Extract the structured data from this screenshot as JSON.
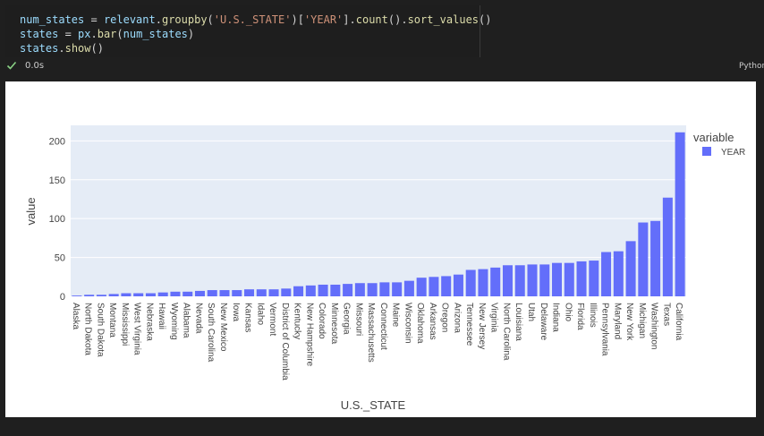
{
  "code": {
    "lines": [
      [
        {
          "t": "num_states",
          "c": "var"
        },
        {
          "t": " = ",
          "c": "op"
        },
        {
          "t": "relevant",
          "c": "var"
        },
        {
          "t": ".",
          "c": "op"
        },
        {
          "t": "groupby",
          "c": "fn"
        },
        {
          "t": "(",
          "c": "op"
        },
        {
          "t": "'U.S._STATE'",
          "c": "str"
        },
        {
          "t": ")[",
          "c": "op"
        },
        {
          "t": "'YEAR'",
          "c": "str"
        },
        {
          "t": "].",
          "c": "op"
        },
        {
          "t": "count",
          "c": "fn"
        },
        {
          "t": "().",
          "c": "op"
        },
        {
          "t": "sort_values",
          "c": "fn"
        },
        {
          "t": "()",
          "c": "op"
        }
      ],
      [
        {
          "t": "states",
          "c": "var"
        },
        {
          "t": " = ",
          "c": "op"
        },
        {
          "t": "px",
          "c": "var"
        },
        {
          "t": ".",
          "c": "op"
        },
        {
          "t": "bar",
          "c": "fn"
        },
        {
          "t": "(",
          "c": "op"
        },
        {
          "t": "num_states",
          "c": "var"
        },
        {
          "t": ")",
          "c": "op"
        }
      ],
      [
        {
          "t": "states",
          "c": "var"
        },
        {
          "t": ".",
          "c": "op"
        },
        {
          "t": "show",
          "c": "fn"
        },
        {
          "t": "()",
          "c": "op"
        }
      ]
    ]
  },
  "status": {
    "exec_time": "0.0s",
    "language": "Python"
  },
  "colors": {
    "bar": "#636efa",
    "plot_bg": "#e5ecf6",
    "check": "#89d185"
  },
  "chart_data": {
    "type": "bar",
    "xlabel": "U.S._STATE",
    "ylabel": "value",
    "legend_title": "variable",
    "legend_position": "top-right",
    "grid": true,
    "ylim": [
      0,
      220
    ],
    "yticks": [
      0,
      50,
      100,
      150,
      200
    ],
    "series": [
      {
        "name": "YEAR",
        "categories": [
          "Alaska",
          "North Dakota",
          "South Dakota",
          "Montana",
          "Mississippi",
          "West Virginia",
          "Nebraska",
          "Hawaii",
          "Wyoming",
          "Alabama",
          "Nevada",
          "South Carolina",
          "New Mexico",
          "Iowa",
          "Kansas",
          "Idaho",
          "Vermont",
          "District of Columbia",
          "Kentucky",
          "New Hampshire",
          "Colorado",
          "Minnesota",
          "Georgia",
          "Missouri",
          "Massachusetts",
          "Connecticut",
          "Maine",
          "Wisconsin",
          "Oklahoma",
          "Arkansas",
          "Oregon",
          "Arizona",
          "Tennessee",
          "New Jersey",
          "Virginia",
          "North Carolina",
          "Louisiana",
          "Utah",
          "Delaware",
          "Indiana",
          "Ohio",
          "Florida",
          "Illinois",
          "Pennsylvania",
          "Maryland",
          "New York",
          "Michigan",
          "Washington",
          "Texas",
          "California"
        ],
        "values": [
          1,
          2,
          2,
          3,
          4,
          4,
          4,
          5,
          6,
          6,
          7,
          8,
          8,
          8,
          9,
          9,
          9,
          10,
          13,
          14,
          15,
          15,
          16,
          17,
          17,
          18,
          18,
          20,
          24,
          25,
          26,
          28,
          34,
          35,
          37,
          40,
          40,
          41,
          41,
          43,
          43,
          45,
          46,
          57,
          58,
          71,
          95,
          97,
          127,
          211
        ]
      }
    ]
  }
}
